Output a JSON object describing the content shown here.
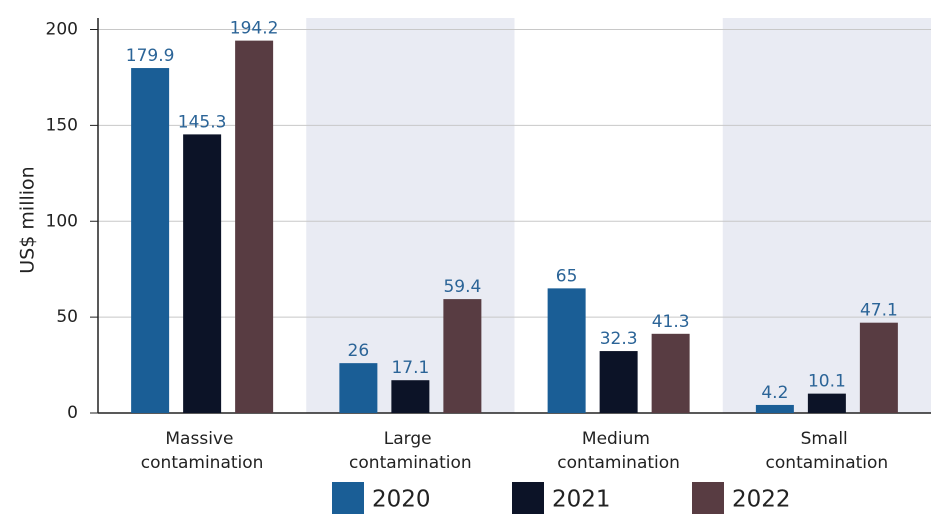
{
  "chart_data": {
    "type": "bar",
    "y_label": "US$ million",
    "categories": [
      "Massive contamination",
      "Large contamination",
      "Medium contamination",
      "Small contamination"
    ],
    "series": [
      {
        "name": "2020",
        "color": "#1a5e96",
        "values": [
          179.9,
          26,
          65,
          4.2
        ]
      },
      {
        "name": "2021",
        "color": "#0c1327",
        "values": [
          145.3,
          17.1,
          32.3,
          10.1
        ]
      },
      {
        "name": "2022",
        "color": "#583c42",
        "values": [
          194.2,
          59.4,
          41.3,
          47.1
        ]
      }
    ],
    "ylim": [
      0,
      206
    ],
    "yticks": [
      0,
      50,
      100,
      150,
      200
    ],
    "grid": true,
    "band_color": "#e9ebf3",
    "value_label_color": "#2b6497",
    "legend": "bottom"
  }
}
